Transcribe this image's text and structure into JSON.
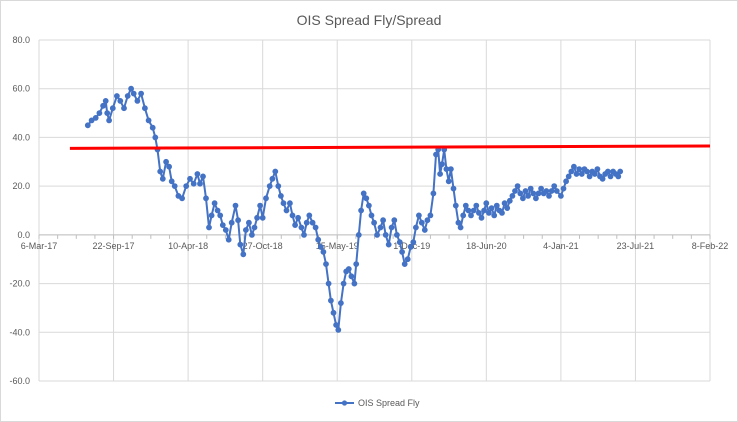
{
  "chart_data": {
    "type": "line",
    "title": "OIS Spread Fly/Spread",
    "xlabel": "",
    "ylabel": "",
    "ylim": [
      -60,
      80
    ],
    "y_ticks": [
      -60,
      -40,
      -20,
      0,
      20,
      40,
      60,
      80
    ],
    "y_tick_labels": [
      "-60.0",
      "-40.0",
      "-20.0",
      "0.0",
      "20.0",
      "40.0",
      "60.0",
      "80.0"
    ],
    "x_range": [
      "2017-03-06",
      "2022-02-08"
    ],
    "x_ticks": [
      "2017-03-06",
      "2017-09-22",
      "2018-04-10",
      "2018-10-27",
      "2019-05-15",
      "2019-12-01",
      "2020-06-18",
      "2021-01-04",
      "2021-07-23",
      "2022-02-08"
    ],
    "x_tick_labels": [
      "6-Mar-17",
      "22-Sep-17",
      "10-Apr-18",
      "27-Oct-18",
      "15-May-19",
      "1-Dec-19",
      "18-Jun-20",
      "4-Jan-21",
      "23-Jul-21",
      "8-Feb-22"
    ],
    "grid": "vertical and horizontal",
    "legend": "bottom",
    "series": [
      {
        "name": "OIS Spread Fly",
        "color": "#4472c4",
        "marker": "circle",
        "points": [
          [
            "2017-07-15",
            45
          ],
          [
            "2017-07-25",
            47
          ],
          [
            "2017-08-05",
            48
          ],
          [
            "2017-08-15",
            50
          ],
          [
            "2017-08-25",
            53
          ],
          [
            "2017-09-01",
            55
          ],
          [
            "2017-09-05",
            50
          ],
          [
            "2017-09-10",
            47
          ],
          [
            "2017-09-20",
            52
          ],
          [
            "2017-10-01",
            57
          ],
          [
            "2017-10-10",
            55
          ],
          [
            "2017-10-20",
            52
          ],
          [
            "2017-10-30",
            57
          ],
          [
            "2017-11-08",
            60
          ],
          [
            "2017-11-15",
            58
          ],
          [
            "2017-11-25",
            55
          ],
          [
            "2017-12-05",
            58
          ],
          [
            "2017-12-15",
            52
          ],
          [
            "2017-12-25",
            47
          ],
          [
            "2018-01-05",
            44
          ],
          [
            "2018-01-12",
            40
          ],
          [
            "2018-01-18",
            35
          ],
          [
            "2018-01-25",
            26
          ],
          [
            "2018-02-01",
            23
          ],
          [
            "2018-02-10",
            30
          ],
          [
            "2018-02-18",
            28
          ],
          [
            "2018-02-25",
            22
          ],
          [
            "2018-03-05",
            20
          ],
          [
            "2018-03-15",
            16
          ],
          [
            "2018-03-25",
            15
          ],
          [
            "2018-04-05",
            20
          ],
          [
            "2018-04-15",
            23
          ],
          [
            "2018-04-25",
            21
          ],
          [
            "2018-05-05",
            25
          ],
          [
            "2018-05-12",
            21
          ],
          [
            "2018-05-20",
            24
          ],
          [
            "2018-05-28",
            15
          ],
          [
            "2018-06-05",
            3
          ],
          [
            "2018-06-12",
            8
          ],
          [
            "2018-06-20",
            13
          ],
          [
            "2018-06-28",
            10
          ],
          [
            "2018-07-05",
            8
          ],
          [
            "2018-07-12",
            4
          ],
          [
            "2018-07-20",
            2
          ],
          [
            "2018-07-28",
            -2
          ],
          [
            "2018-08-05",
            5
          ],
          [
            "2018-08-15",
            12
          ],
          [
            "2018-08-22",
            6
          ],
          [
            "2018-08-28",
            -4
          ],
          [
            "2018-09-05",
            -8
          ],
          [
            "2018-09-12",
            2
          ],
          [
            "2018-09-20",
            5
          ],
          [
            "2018-09-28",
            0
          ],
          [
            "2018-10-05",
            3
          ],
          [
            "2018-10-12",
            7
          ],
          [
            "2018-10-20",
            12
          ],
          [
            "2018-10-27",
            7
          ],
          [
            "2018-11-05",
            15
          ],
          [
            "2018-11-15",
            20
          ],
          [
            "2018-11-22",
            23
          ],
          [
            "2018-11-30",
            26
          ],
          [
            "2018-12-08",
            20
          ],
          [
            "2018-12-15",
            16
          ],
          [
            "2018-12-22",
            13
          ],
          [
            "2018-12-30",
            10
          ],
          [
            "2019-01-08",
            13
          ],
          [
            "2019-01-15",
            8
          ],
          [
            "2019-01-22",
            4
          ],
          [
            "2019-01-30",
            7
          ],
          [
            "2019-02-08",
            3
          ],
          [
            "2019-02-15",
            0
          ],
          [
            "2019-02-22",
            5
          ],
          [
            "2019-03-01",
            8
          ],
          [
            "2019-03-10",
            5
          ],
          [
            "2019-03-18",
            3
          ],
          [
            "2019-03-25",
            -2
          ],
          [
            "2019-04-01",
            -5
          ],
          [
            "2019-04-08",
            -7
          ],
          [
            "2019-04-15",
            -12
          ],
          [
            "2019-04-22",
            -20
          ],
          [
            "2019-04-28",
            -27
          ],
          [
            "2019-05-05",
            -32
          ],
          [
            "2019-05-12",
            -37
          ],
          [
            "2019-05-18",
            -39
          ],
          [
            "2019-05-25",
            -28
          ],
          [
            "2019-06-01",
            -20
          ],
          [
            "2019-06-08",
            -15
          ],
          [
            "2019-06-15",
            -14
          ],
          [
            "2019-06-22",
            -17
          ],
          [
            "2019-06-30",
            -20
          ],
          [
            "2019-07-05",
            -12
          ],
          [
            "2019-07-12",
            0
          ],
          [
            "2019-07-18",
            10
          ],
          [
            "2019-07-25",
            17
          ],
          [
            "2019-08-01",
            15
          ],
          [
            "2019-08-08",
            12
          ],
          [
            "2019-08-15",
            8
          ],
          [
            "2019-08-22",
            5
          ],
          [
            "2019-08-30",
            0
          ],
          [
            "2019-09-08",
            3
          ],
          [
            "2019-09-15",
            6
          ],
          [
            "2019-09-22",
            0
          ],
          [
            "2019-09-30",
            -4
          ],
          [
            "2019-10-08",
            3
          ],
          [
            "2019-10-15",
            6
          ],
          [
            "2019-10-22",
            0
          ],
          [
            "2019-10-30",
            -3
          ],
          [
            "2019-11-05",
            -7
          ],
          [
            "2019-11-12",
            -12
          ],
          [
            "2019-11-20",
            -10
          ],
          [
            "2019-11-28",
            -5
          ],
          [
            "2019-12-05",
            -3
          ],
          [
            "2019-12-12",
            3
          ],
          [
            "2019-12-20",
            8
          ],
          [
            "2019-12-28",
            5
          ],
          [
            "2020-01-05",
            2
          ],
          [
            "2020-01-12",
            6
          ],
          [
            "2020-01-20",
            8
          ],
          [
            "2020-01-28",
            17
          ],
          [
            "2020-02-04",
            33
          ],
          [
            "2020-02-10",
            35
          ],
          [
            "2020-02-15",
            25
          ],
          [
            "2020-02-20",
            29
          ],
          [
            "2020-02-26",
            35
          ],
          [
            "2020-03-03",
            27
          ],
          [
            "2020-03-09",
            22
          ],
          [
            "2020-03-15",
            27
          ],
          [
            "2020-03-22",
            19
          ],
          [
            "2020-03-28",
            12
          ],
          [
            "2020-04-04",
            5
          ],
          [
            "2020-04-10",
            3
          ],
          [
            "2020-04-17",
            8
          ],
          [
            "2020-04-24",
            12
          ],
          [
            "2020-05-01",
            10
          ],
          [
            "2020-05-08",
            8
          ],
          [
            "2020-05-15",
            10
          ],
          [
            "2020-05-22",
            12
          ],
          [
            "2020-05-29",
            9
          ],
          [
            "2020-06-05",
            7
          ],
          [
            "2020-06-12",
            10
          ],
          [
            "2020-06-18",
            13
          ],
          [
            "2020-06-25",
            9
          ],
          [
            "2020-07-02",
            11
          ],
          [
            "2020-07-09",
            8
          ],
          [
            "2020-07-16",
            12
          ],
          [
            "2020-07-23",
            10
          ],
          [
            "2020-07-30",
            9
          ],
          [
            "2020-08-06",
            13
          ],
          [
            "2020-08-13",
            11
          ],
          [
            "2020-08-20",
            14
          ],
          [
            "2020-08-27",
            16
          ],
          [
            "2020-09-03",
            18
          ],
          [
            "2020-09-10",
            20
          ],
          [
            "2020-09-17",
            17
          ],
          [
            "2020-09-24",
            15
          ],
          [
            "2020-10-01",
            18
          ],
          [
            "2020-10-08",
            16
          ],
          [
            "2020-10-15",
            19
          ],
          [
            "2020-10-22",
            17
          ],
          [
            "2020-10-29",
            15
          ],
          [
            "2020-11-05",
            17
          ],
          [
            "2020-11-12",
            19
          ],
          [
            "2020-11-19",
            17
          ],
          [
            "2020-11-26",
            18
          ],
          [
            "2020-12-03",
            16
          ],
          [
            "2020-12-10",
            18
          ],
          [
            "2020-12-17",
            20
          ],
          [
            "2020-12-24",
            18
          ],
          [
            "2021-01-04",
            16
          ],
          [
            "2021-01-11",
            19
          ],
          [
            "2021-01-18",
            22
          ],
          [
            "2021-01-25",
            24
          ],
          [
            "2021-02-01",
            26
          ],
          [
            "2021-02-08",
            28
          ],
          [
            "2021-02-15",
            25
          ],
          [
            "2021-02-22",
            27
          ],
          [
            "2021-03-01",
            25
          ],
          [
            "2021-03-08",
            27
          ],
          [
            "2021-03-15",
            26
          ],
          [
            "2021-03-22",
            24
          ],
          [
            "2021-03-29",
            26
          ],
          [
            "2021-04-05",
            25
          ],
          [
            "2021-04-12",
            27
          ],
          [
            "2021-04-19",
            24
          ],
          [
            "2021-04-26",
            23
          ],
          [
            "2021-05-03",
            25
          ],
          [
            "2021-05-10",
            26
          ],
          [
            "2021-05-17",
            24
          ],
          [
            "2021-05-24",
            26
          ],
          [
            "2021-05-31",
            25
          ],
          [
            "2021-06-07",
            24
          ],
          [
            "2021-06-12",
            26
          ]
        ]
      },
      {
        "name": "",
        "color": "#ff0000",
        "marker": "none",
        "points": [
          [
            "2017-05-28",
            35.5
          ],
          [
            "2022-02-08",
            36.5
          ]
        ]
      }
    ]
  }
}
